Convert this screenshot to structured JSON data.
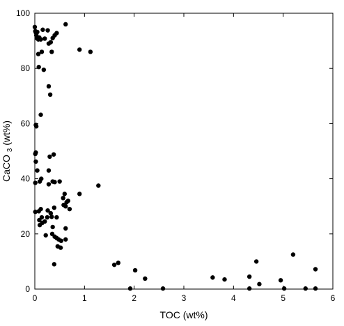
{
  "chart_data": {
    "type": "scatter",
    "title": "",
    "xlabel": "TOC (wt%)",
    "ylabel": {
      "prefix": "CaCO",
      "subscript": "3",
      "suffix": " (wt%)"
    },
    "xlim": [
      0,
      6
    ],
    "ylim": [
      0,
      100
    ],
    "xticks": [
      0,
      1,
      2,
      3,
      4,
      5,
      6
    ],
    "yticks": [
      0,
      20,
      40,
      60,
      80,
      100
    ],
    "grid": false,
    "legend": "none",
    "colors": {
      "points": "#000000",
      "axes": "#000000",
      "background": "#ffffff"
    },
    "series": [
      {
        "points": [
          [
            0.0,
            95.0
          ],
          [
            0.01,
            93.5
          ],
          [
            0.02,
            93.0
          ],
          [
            0.03,
            92.0
          ],
          [
            0.04,
            91.0
          ],
          [
            0.05,
            93.2
          ],
          [
            0.07,
            90.5
          ],
          [
            0.09,
            91.2
          ],
          [
            0.12,
            90.5
          ],
          [
            0.16,
            94.0
          ],
          [
            0.2,
            90.8
          ],
          [
            0.26,
            93.8
          ],
          [
            0.28,
            89.0
          ],
          [
            0.32,
            89.5
          ],
          [
            0.36,
            91.0
          ],
          [
            0.4,
            92.0
          ],
          [
            0.44,
            92.8
          ],
          [
            0.62,
            96.0
          ],
          [
            0.07,
            85.2
          ],
          [
            0.14,
            86.0
          ],
          [
            0.34,
            86.0
          ],
          [
            0.9,
            86.8
          ],
          [
            1.12,
            86.0
          ],
          [
            0.08,
            80.5
          ],
          [
            0.18,
            79.5
          ],
          [
            0.28,
            73.5
          ],
          [
            0.31,
            70.5
          ],
          [
            0.12,
            63.2
          ],
          [
            0.02,
            59.5
          ],
          [
            0.03,
            59.0
          ],
          [
            0.01,
            49.0
          ],
          [
            0.02,
            49.5
          ],
          [
            0.02,
            46.2
          ],
          [
            0.05,
            43.0
          ],
          [
            0.3,
            48.0
          ],
          [
            0.38,
            48.8
          ],
          [
            0.28,
            43.0
          ],
          [
            0.01,
            38.5
          ],
          [
            0.1,
            39.0
          ],
          [
            0.13,
            40.0
          ],
          [
            0.28,
            38.0
          ],
          [
            0.36,
            39.0
          ],
          [
            0.4,
            38.8
          ],
          [
            0.5,
            39.0
          ],
          [
            0.57,
            33.0
          ],
          [
            0.6,
            34.5
          ],
          [
            0.64,
            31.5
          ],
          [
            0.58,
            30.5
          ],
          [
            0.62,
            30.0
          ],
          [
            0.67,
            32.0
          ],
          [
            0.7,
            29.0
          ],
          [
            0.9,
            34.5
          ],
          [
            1.28,
            37.5
          ],
          [
            0.01,
            28.0
          ],
          [
            0.08,
            28.2
          ],
          [
            0.12,
            29.0
          ],
          [
            0.09,
            25.0
          ],
          [
            0.14,
            26.0
          ],
          [
            0.1,
            23.2
          ],
          [
            0.15,
            24.0
          ],
          [
            0.2,
            24.5
          ],
          [
            0.25,
            26.0
          ],
          [
            0.26,
            28.5
          ],
          [
            0.32,
            27.5
          ],
          [
            0.34,
            26.2
          ],
          [
            0.36,
            22.5
          ],
          [
            0.39,
            29.5
          ],
          [
            0.44,
            26.0
          ],
          [
            0.35,
            20.0
          ],
          [
            0.4,
            19.0
          ],
          [
            0.22,
            19.5
          ],
          [
            0.44,
            18.5
          ],
          [
            0.48,
            18.0
          ],
          [
            0.53,
            17.5
          ],
          [
            0.46,
            15.5
          ],
          [
            0.52,
            15.0
          ],
          [
            0.62,
            22.0
          ],
          [
            0.62,
            18.0
          ],
          [
            0.39,
            9.0
          ],
          [
            1.6,
            8.8
          ],
          [
            1.68,
            9.5
          ],
          [
            2.02,
            6.8
          ],
          [
            2.22,
            3.8
          ],
          [
            1.92,
            0.2
          ],
          [
            2.58,
            0.2
          ],
          [
            3.58,
            4.2
          ],
          [
            3.82,
            3.5
          ],
          [
            4.32,
            4.5
          ],
          [
            4.32,
            0.2
          ],
          [
            4.46,
            10.0
          ],
          [
            4.52,
            1.8
          ],
          [
            4.95,
            3.2
          ],
          [
            5.02,
            0.2
          ],
          [
            5.2,
            12.5
          ],
          [
            5.45,
            0.2
          ],
          [
            5.65,
            7.2
          ],
          [
            5.65,
            0.2
          ]
        ]
      }
    ]
  }
}
